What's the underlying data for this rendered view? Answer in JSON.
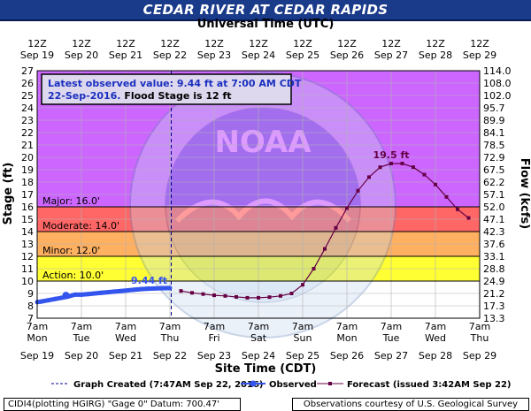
{
  "title": "CEDAR RIVER AT CEDAR RAPIDS",
  "top_axis_label": "Universal Time (UTC)",
  "bottom_axis_label": "Site Time (CDT)",
  "ylabel_left": "Stage (ft)",
  "ylabel_right": "Flow (kcfs)",
  "info_box": {
    "line1": "Latest observed value: 9.44 ft at 7:00 AM CDT",
    "line2_date": "22-Sep-2016.",
    "line2_rest": "Flood Stage is 12 ft"
  },
  "legend": {
    "created": "Graph Created (7:47AM Sep 22, 2016)",
    "observed": "Observed",
    "forecast": "Forecast (issued 3:42AM Sep 22)"
  },
  "footer": {
    "left": "CIDI4(plotting HGIRG) \"Gage 0\" Datum: 700.47'",
    "right": "Observations courtesy of U.S. Geological Survey"
  },
  "colors": {
    "title_bg": "#1a3a8a",
    "major": "#cc66ff",
    "major_lower": "#dd88ff",
    "moderate": "#ff6666",
    "minor": "#ffb060",
    "action": "#ffff33",
    "observed": "#3355ee",
    "forecast": "#660044",
    "grid": "#b3b3b3",
    "created_line": "#000088"
  },
  "chart_data": {
    "type": "line",
    "title": "CEDAR RIVER AT CEDAR RAPIDS",
    "xlabel": "Site Time (CDT)",
    "ylabel": "Stage (ft)",
    "y2label": "Flow (kcfs)",
    "ylim": [
      7,
      27
    ],
    "xlim": [
      "2016-09-19 07:00",
      "2016-09-29 07:00"
    ],
    "x_ticks_bottom": [
      {
        "time": "7am",
        "day": "Mon",
        "date": "Sep 19"
      },
      {
        "time": "7am",
        "day": "Tue",
        "date": "Sep 20"
      },
      {
        "time": "7am",
        "day": "Wed",
        "date": "Sep 21"
      },
      {
        "time": "7am",
        "day": "Thu",
        "date": "Sep 22"
      },
      {
        "time": "7am",
        "day": "Fri",
        "date": "Sep 23"
      },
      {
        "time": "7am",
        "day": "Sat",
        "date": "Sep 24"
      },
      {
        "time": "7am",
        "day": "Sun",
        "date": "Sep 25"
      },
      {
        "time": "7am",
        "day": "Mon",
        "date": "Sep 26"
      },
      {
        "time": "7am",
        "day": "Tue",
        "date": "Sep 27"
      },
      {
        "time": "7am",
        "day": "Wed",
        "date": "Sep 28"
      },
      {
        "time": "7am",
        "day": "Thu",
        "date": "Sep 29"
      }
    ],
    "x_ticks_top": [
      {
        "time": "12Z",
        "date": "Sep 19"
      },
      {
        "time": "12Z",
        "date": "Sep 20"
      },
      {
        "time": "12Z",
        "date": "Sep 21"
      },
      {
        "time": "12Z",
        "date": "Sep 22"
      },
      {
        "time": "12Z",
        "date": "Sep 23"
      },
      {
        "time": "12Z",
        "date": "Sep 24"
      },
      {
        "time": "12Z",
        "date": "Sep 25"
      },
      {
        "time": "12Z",
        "date": "Sep 26"
      },
      {
        "time": "12Z",
        "date": "Sep 27"
      },
      {
        "time": "12Z",
        "date": "Sep 28"
      },
      {
        "time": "12Z",
        "date": "Sep 29"
      }
    ],
    "y_ticks": [
      7,
      8,
      9,
      10,
      11,
      12,
      13,
      14,
      15,
      16,
      17,
      18,
      19,
      20,
      21,
      22,
      23,
      24,
      25,
      26,
      27
    ],
    "flow_ticks": [
      {
        "stage": 7,
        "label": "13.3"
      },
      {
        "stage": 8,
        "label": "17.3"
      },
      {
        "stage": 9,
        "label": "21.2"
      },
      {
        "stage": 10,
        "label": "24.9"
      },
      {
        "stage": 11,
        "label": "28.8"
      },
      {
        "stage": 12,
        "label": "33.1"
      },
      {
        "stage": 13,
        "label": "37.6"
      },
      {
        "stage": 14,
        "label": "42.3"
      },
      {
        "stage": 15,
        "label": "47.1"
      },
      {
        "stage": 16,
        "label": "52.0"
      },
      {
        "stage": 17,
        "label": "57.1"
      },
      {
        "stage": 18,
        "label": "62.2"
      },
      {
        "stage": 19,
        "label": "67.5"
      },
      {
        "stage": 20,
        "label": "72.9"
      },
      {
        "stage": 21,
        "label": "78.5"
      },
      {
        "stage": 22,
        "label": "84.1"
      },
      {
        "stage": 23,
        "label": "89.9"
      },
      {
        "stage": 24,
        "label": "95.7"
      },
      {
        "stage": 25,
        "label": "102.0"
      },
      {
        "stage": 26,
        "label": "108.0"
      },
      {
        "stage": 27,
        "label": "114.0"
      }
    ],
    "flood_categories": [
      {
        "name": "Major",
        "label": "Major: 16.0'",
        "from": 16,
        "to": 27
      },
      {
        "name": "Moderate",
        "label": "Moderate: 14.0'",
        "from": 14,
        "to": 16
      },
      {
        "name": "Minor",
        "label": "Minor: 12.0'",
        "from": 12,
        "to": 14
      },
      {
        "name": "Action",
        "label": "Action: 10.0'",
        "from": 10,
        "to": 12
      }
    ],
    "created_day": 3.03,
    "series": [
      {
        "name": "Observed",
        "x_days": [
          0.0,
          0.1,
          0.25,
          0.4,
          0.55,
          0.7,
          0.85,
          1.0,
          1.15,
          1.3,
          1.45,
          1.6,
          1.75,
          1.9,
          2.05,
          2.2,
          2.35,
          2.5,
          2.65,
          2.8,
          3.0
        ],
        "y": [
          8.3,
          8.35,
          8.45,
          8.55,
          8.65,
          8.75,
          8.9,
          8.9,
          8.95,
          9.0,
          9.05,
          9.1,
          9.15,
          9.2,
          9.25,
          9.3,
          9.35,
          9.38,
          9.4,
          9.42,
          9.44
        ]
      },
      {
        "name": "Forecast",
        "x_days": [
          3.25,
          3.5,
          3.75,
          4.0,
          4.25,
          4.5,
          4.75,
          5.0,
          5.25,
          5.5,
          5.75,
          6.0,
          6.25,
          6.5,
          6.75,
          7.0,
          7.25,
          7.5,
          7.75,
          8.0,
          8.25,
          8.5,
          8.75,
          9.0,
          9.25,
          9.5,
          9.75
        ],
        "y": [
          9.2,
          9.05,
          8.95,
          8.85,
          8.8,
          8.72,
          8.65,
          8.65,
          8.7,
          8.8,
          9.0,
          9.7,
          11.0,
          12.6,
          14.3,
          15.9,
          17.3,
          18.4,
          19.2,
          19.5,
          19.5,
          19.2,
          18.6,
          17.8,
          16.8,
          15.8,
          15.1
        ]
      }
    ],
    "annotations": [
      {
        "text": "9.44 ft",
        "x_day": 3.0,
        "y": 9.44
      },
      {
        "text": "19.5 ft",
        "x_day": 8.0,
        "y": 19.5
      }
    ]
  }
}
